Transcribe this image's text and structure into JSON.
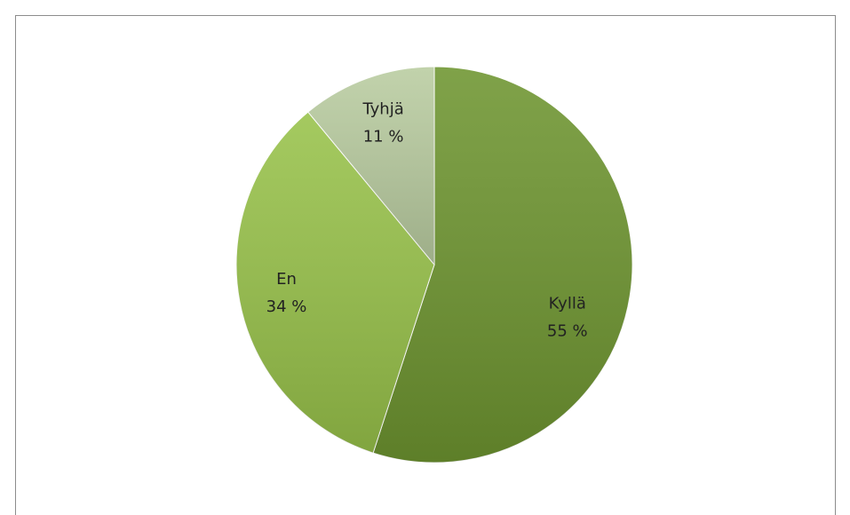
{
  "chart_data": {
    "type": "pie",
    "categories": [
      "Kyllä",
      "En",
      "Tyhjä"
    ],
    "values": [
      55,
      34,
      11
    ],
    "value_labels": [
      "55 %",
      "34 %",
      "11 %"
    ],
    "colors": [
      "#6e9530",
      "#98c24a",
      "#b9cca0"
    ]
  }
}
